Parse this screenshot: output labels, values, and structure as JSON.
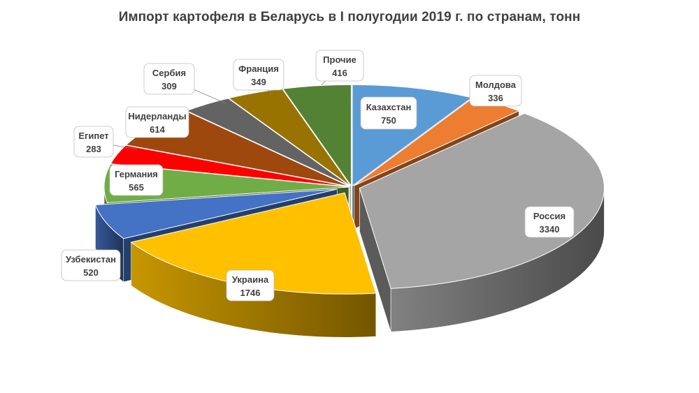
{
  "chart_data": {
    "type": "pie",
    "title": "Импорт картофеля в Беларусь в I  полугодии 2019 г. по странам, тонн",
    "unit": "тонн",
    "legend": "none",
    "slices": [
      {
        "label": "Казахстан",
        "value": 750,
        "value_text": "750",
        "color": "#5b9bd5"
      },
      {
        "label": "Молдова",
        "value": 336,
        "value_text": "336",
        "color": "#ed7d31"
      },
      {
        "label": "Россия",
        "value": 3340,
        "value_text": "3340",
        "color": "#a5a5a5"
      },
      {
        "label": "Украина",
        "value": 1746,
        "value_text": "1746",
        "color": "#ffc000"
      },
      {
        "label": "Узбекистан",
        "value": 520,
        "value_text": "520",
        "color": "#4472c4"
      },
      {
        "label": "Германия",
        "value": 565,
        "value_text": "565",
        "color": "#70ad47"
      },
      {
        "label": "Египет",
        "value": 283,
        "value_text": "283",
        "color": "#ff0000"
      },
      {
        "label": "Нидерланды",
        "value": 614,
        "value_text": "614",
        "color": "#9e480e"
      },
      {
        "label": "Сербия",
        "value": 309,
        "value_text": "309",
        "color": "#636363"
      },
      {
        "label": "Франция",
        "value": 349,
        "value_text": "349",
        "color": "#997300"
      },
      {
        "label": "Прочие",
        "value": 416,
        "value_text": "416",
        "color": "#548235"
      }
    ]
  }
}
